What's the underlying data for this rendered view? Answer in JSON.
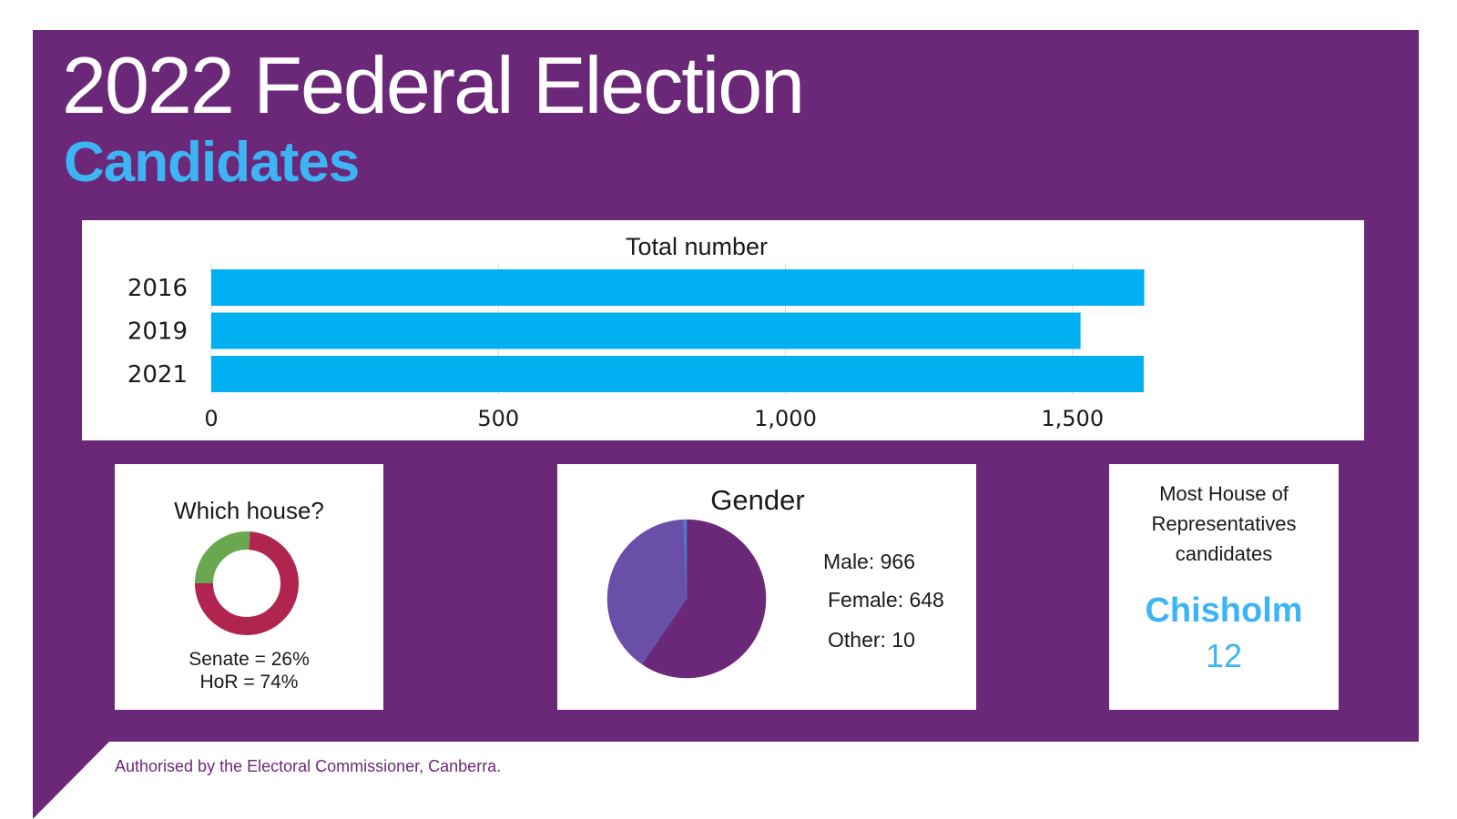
{
  "header": {
    "title": "2022 Federal Election",
    "subtitle": "Candidates"
  },
  "colors": {
    "purple": "#6b2878",
    "accent_blue": "#3db5f5",
    "bar_blue": "#00b0f0",
    "senate_green": "#6aa84f",
    "hor_red": "#b0254f",
    "male_purple": "#6b2878",
    "female_violet": "#6a4fa8",
    "other_blue": "#4a7bd0"
  },
  "chart_data": [
    {
      "type": "bar",
      "orientation": "horizontal",
      "title": "Total number",
      "categories": [
        "2016",
        "2019",
        "2021"
      ],
      "values": [
        1625,
        1514,
        1624
      ],
      "xlim": [
        0,
        2000
      ],
      "xticks": [
        "0",
        "500",
        "1,000",
        "1,500"
      ],
      "grid": true
    },
    {
      "type": "pie",
      "variant": "donut",
      "title": "Which house?",
      "labels": [
        "Senate",
        "HoR"
      ],
      "values": [
        26,
        74
      ],
      "annotations": [
        "Senate  = 26%",
        "HoR = 74%"
      ]
    },
    {
      "type": "pie",
      "title": "Gender",
      "labels": [
        "Male",
        "Female",
        "Other"
      ],
      "values": [
        966,
        648,
        10
      ],
      "annotations": [
        "Male: 966",
        "Female: 648",
        "Other: 10"
      ]
    }
  ],
  "highlight": {
    "label_lines": [
      "Most House of",
      "Representatives",
      "candidates"
    ],
    "name": "Chisholm",
    "count": "12"
  },
  "footer": {
    "text": "Authorised by the Electoral Commissioner, Canberra."
  }
}
